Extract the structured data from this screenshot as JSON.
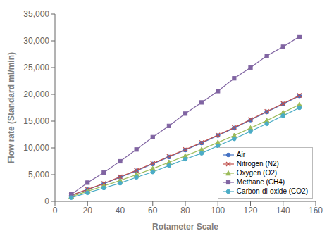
{
  "chart_data": {
    "type": "line",
    "xlabel": "Rotameter Scale",
    "ylabel": "Flow rate (Standard ml/min)",
    "x": [
      10,
      20,
      30,
      40,
      50,
      60,
      70,
      80,
      90,
      100,
      110,
      120,
      130,
      140,
      150
    ],
    "series": [
      {
        "name": "Air",
        "color": "#4472c4",
        "marker": "circle",
        "values": [
          1100,
          2200,
          3300,
          4500,
          5700,
          7000,
          8300,
          9600,
          10900,
          12300,
          13700,
          15200,
          16700,
          18200,
          19700
        ]
      },
      {
        "name": "Nitrogen (N2)",
        "color": "#c0504d",
        "marker": "x",
        "values": [
          1150,
          2250,
          3350,
          4600,
          5800,
          7100,
          8400,
          9700,
          11000,
          12400,
          13800,
          15300,
          16800,
          18300,
          19800
        ]
      },
      {
        "name": "Oxygen (O2)",
        "color": "#9bbb59",
        "marker": "triangle",
        "values": [
          900,
          1900,
          2900,
          3900,
          5000,
          6100,
          7300,
          8500,
          9700,
          11000,
          12300,
          13700,
          15100,
          16600,
          18100
        ]
      },
      {
        "name": "Methane (CH4)",
        "color": "#8064a2",
        "marker": "square",
        "values": [
          1300,
          3500,
          5400,
          7500,
          9700,
          12000,
          14100,
          16400,
          18500,
          20600,
          23000,
          25000,
          27200,
          28900,
          30800
        ]
      },
      {
        "name": "Carbon-di-oxide (CO2)",
        "color": "#4bacc6",
        "marker": "circle",
        "values": [
          700,
          1600,
          2500,
          3400,
          4500,
          5500,
          6700,
          7900,
          9000,
          10400,
          11700,
          13100,
          14500,
          16000,
          17500
        ]
      }
    ],
    "xlim": [
      0,
      160
    ],
    "ylim": [
      0,
      35000
    ],
    "xticks": [
      0,
      20,
      40,
      60,
      80,
      100,
      120,
      140,
      160
    ],
    "yticks": [
      0,
      {
        "value": 5000,
        "label": "5,000"
      },
      {
        "value": 10000,
        "label": "10,000"
      },
      {
        "value": 15000,
        "label": "15,000"
      },
      {
        "value": 20000,
        "label": "20,000"
      },
      {
        "value": 25000,
        "label": "25,000"
      },
      {
        "value": 30000,
        "label": "30,000"
      },
      {
        "value": 35000,
        "label": "35,000"
      }
    ],
    "legend": "lower right",
    "grid": false
  }
}
